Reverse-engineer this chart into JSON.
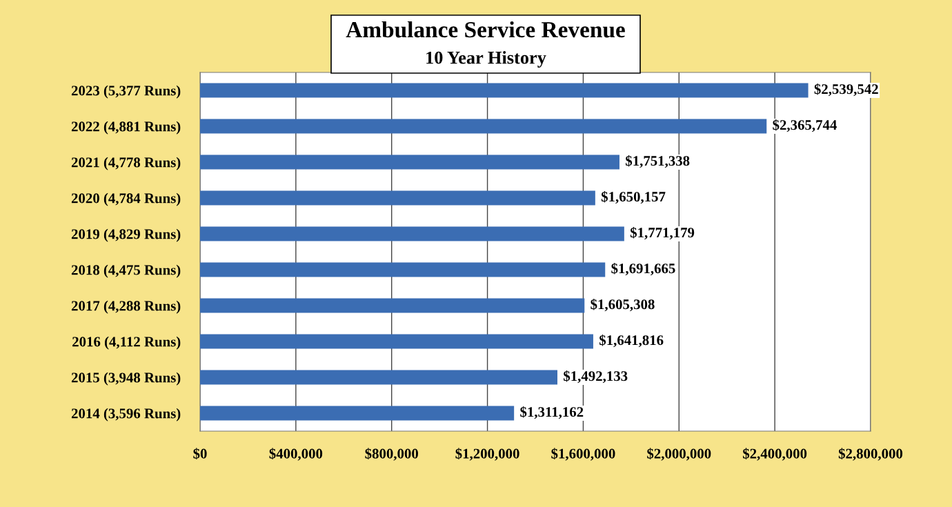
{
  "chart_data": {
    "type": "bar",
    "orientation": "horizontal",
    "title": "Ambulance Service Revenue",
    "subtitle": "10 Year History",
    "categories": [
      "2023 (5,377 Runs)",
      "2022 (4,881 Runs)",
      "2021 (4,778 Runs)",
      "2020 (4,784 Runs)",
      "2019 (4,829 Runs)",
      "2018 (4,475 Runs)",
      "2017 (4,288 Runs)",
      "2016 (4,112 Runs)",
      "2015 (3,948 Runs)",
      "2014 (3,596 Runs)"
    ],
    "values": [
      2539542,
      2365744,
      1751338,
      1650157,
      1771179,
      1691665,
      1605308,
      1641816,
      1492133,
      1311162
    ],
    "value_labels": [
      "$2,539,542",
      "$2,365,744",
      "$1,751,338",
      "$1,650,157",
      "$1,771,179",
      "$1,691,665",
      "$1,605,308",
      "$1,641,816",
      "$1,492,133",
      "$1,311,162"
    ],
    "color": "#3b6db3",
    "xlim": [
      0,
      2800000
    ],
    "xticks": [
      {
        "value": 0,
        "label": "$0"
      },
      {
        "value": 400000,
        "label": "$400,000"
      },
      {
        "value": 800000,
        "label": "$800,000"
      },
      {
        "value": 1200000,
        "label": "$1,200,000"
      },
      {
        "value": 1600000,
        "label": "$1,600,000"
      },
      {
        "value": 2000000,
        "label": "$2,000,000"
      },
      {
        "value": 2400000,
        "label": "$2,400,000"
      },
      {
        "value": 2800000,
        "label": "$2,800,000"
      }
    ],
    "grid": "x",
    "legend": false
  }
}
